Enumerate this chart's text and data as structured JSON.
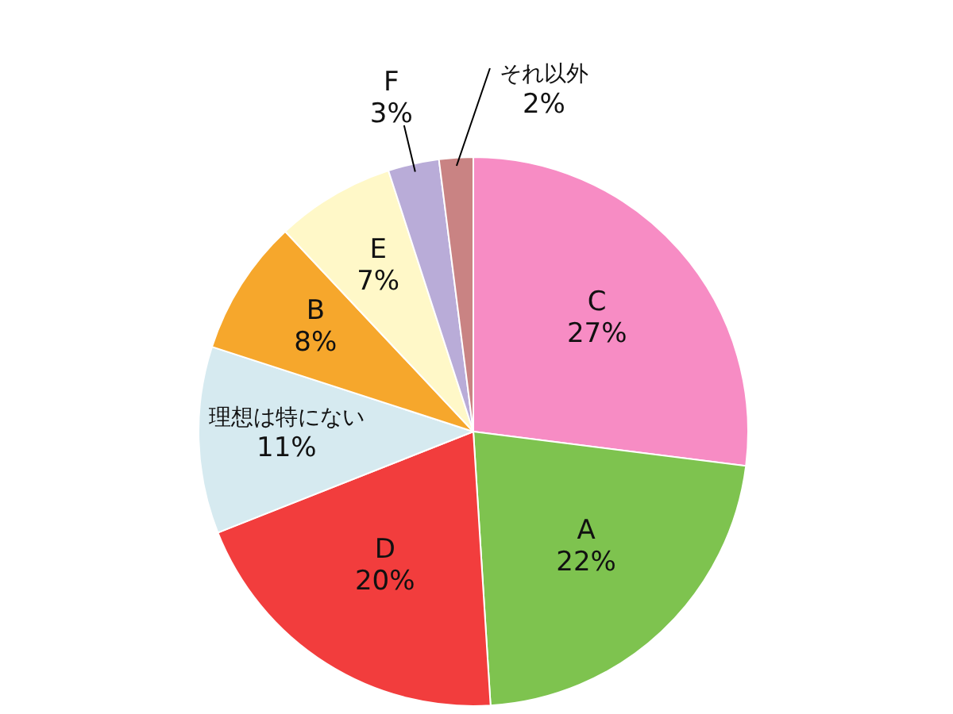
{
  "chart_data": {
    "type": "pie",
    "categories": [
      "C",
      "A",
      "D",
      "理想は特にない",
      "B",
      "E",
      "F",
      "それ以外"
    ],
    "values": [
      27,
      22,
      20,
      11,
      8,
      7,
      3,
      2
    ],
    "value_labels": [
      "27%",
      "22%",
      "20%",
      "11%",
      "8%",
      "7%",
      "3%",
      "2%"
    ],
    "colors": [
      "#f78cc4",
      "#7ec34f",
      "#f23d3d",
      "#d6eaf0",
      "#f6a72c",
      "#fff8c8",
      "#b9acd8",
      "#c98383"
    ]
  }
}
